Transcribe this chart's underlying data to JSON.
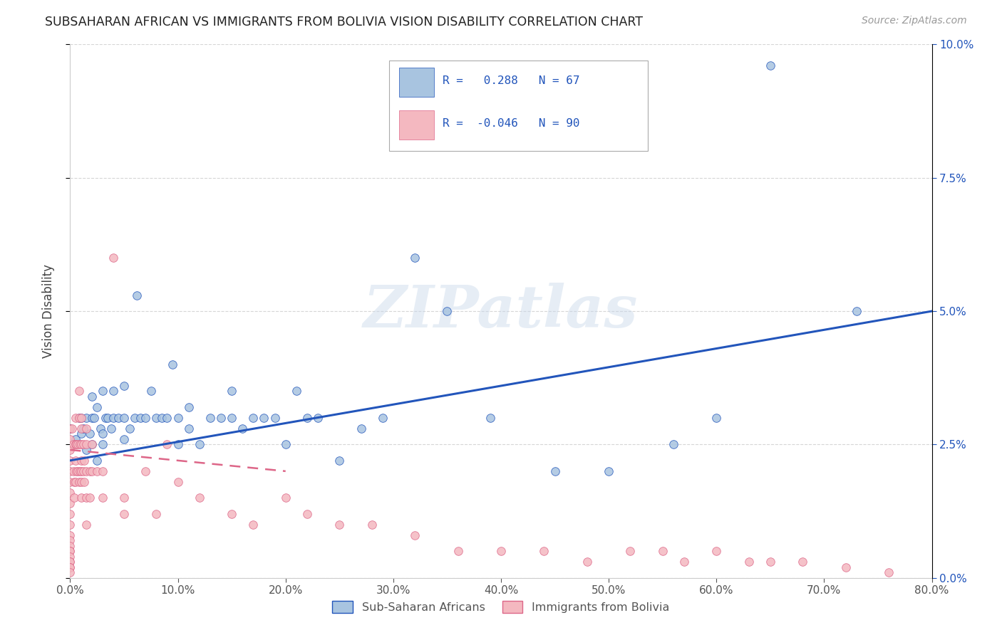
{
  "title": "SUBSAHARAN AFRICAN VS IMMIGRANTS FROM BOLIVIA VISION DISABILITY CORRELATION CHART",
  "source": "Source: ZipAtlas.com",
  "ylabel": "Vision Disability",
  "legend_labels": [
    "Sub-Saharan Africans",
    "Immigrants from Bolivia"
  ],
  "blue_R": "0.288",
  "blue_N": "67",
  "pink_R": "-0.046",
  "pink_N": "90",
  "blue_color": "#a8c4e0",
  "pink_color": "#f4b8c0",
  "blue_line_color": "#2255bb",
  "pink_line_color": "#dd6688",
  "watermark_text": "ZIPatlas",
  "background_color": "#ffffff",
  "xlim": [
    0.0,
    0.8
  ],
  "ylim": [
    0.0,
    0.1
  ],
  "blue_scatter_x": [
    0.0,
    0.005,
    0.008,
    0.01,
    0.01,
    0.012,
    0.015,
    0.015,
    0.018,
    0.02,
    0.02,
    0.02,
    0.022,
    0.025,
    0.025,
    0.028,
    0.03,
    0.03,
    0.03,
    0.033,
    0.035,
    0.038,
    0.04,
    0.04,
    0.045,
    0.05,
    0.05,
    0.05,
    0.055,
    0.06,
    0.062,
    0.065,
    0.07,
    0.075,
    0.08,
    0.085,
    0.09,
    0.095,
    0.1,
    0.1,
    0.11,
    0.11,
    0.12,
    0.13,
    0.14,
    0.15,
    0.15,
    0.16,
    0.17,
    0.18,
    0.19,
    0.2,
    0.21,
    0.22,
    0.23,
    0.25,
    0.27,
    0.29,
    0.32,
    0.35,
    0.39,
    0.45,
    0.5,
    0.56,
    0.6,
    0.65,
    0.73
  ],
  "blue_scatter_y": [
    0.028,
    0.026,
    0.03,
    0.027,
    0.03,
    0.028,
    0.024,
    0.03,
    0.027,
    0.025,
    0.03,
    0.034,
    0.03,
    0.022,
    0.032,
    0.028,
    0.025,
    0.027,
    0.035,
    0.03,
    0.03,
    0.028,
    0.03,
    0.035,
    0.03,
    0.026,
    0.03,
    0.036,
    0.028,
    0.03,
    0.053,
    0.03,
    0.03,
    0.035,
    0.03,
    0.03,
    0.03,
    0.04,
    0.025,
    0.03,
    0.028,
    0.032,
    0.025,
    0.03,
    0.03,
    0.03,
    0.035,
    0.028,
    0.03,
    0.03,
    0.03,
    0.025,
    0.035,
    0.03,
    0.03,
    0.022,
    0.028,
    0.03,
    0.06,
    0.05,
    0.03,
    0.02,
    0.02,
    0.025,
    0.03,
    0.096,
    0.05
  ],
  "pink_scatter_x": [
    0.0,
    0.0,
    0.0,
    0.0,
    0.0,
    0.0,
    0.0,
    0.0,
    0.0,
    0.0,
    0.0,
    0.0,
    0.0,
    0.0,
    0.0,
    0.0,
    0.0,
    0.0,
    0.0,
    0.0,
    0.0,
    0.002,
    0.003,
    0.003,
    0.004,
    0.004,
    0.005,
    0.005,
    0.005,
    0.005,
    0.006,
    0.006,
    0.007,
    0.007,
    0.008,
    0.008,
    0.008,
    0.009,
    0.009,
    0.01,
    0.01,
    0.01,
    0.01,
    0.01,
    0.01,
    0.01,
    0.012,
    0.012,
    0.013,
    0.013,
    0.015,
    0.015,
    0.015,
    0.015,
    0.015,
    0.018,
    0.018,
    0.02,
    0.02,
    0.025,
    0.03,
    0.03,
    0.04,
    0.05,
    0.05,
    0.07,
    0.08,
    0.09,
    0.1,
    0.12,
    0.15,
    0.17,
    0.2,
    0.22,
    0.25,
    0.28,
    0.32,
    0.36,
    0.4,
    0.44,
    0.48,
    0.52,
    0.55,
    0.57,
    0.6,
    0.63,
    0.65,
    0.68,
    0.72,
    0.76
  ],
  "pink_scatter_y": [
    0.028,
    0.026,
    0.024,
    0.022,
    0.02,
    0.018,
    0.016,
    0.014,
    0.012,
    0.01,
    0.008,
    0.007,
    0.006,
    0.005,
    0.005,
    0.004,
    0.003,
    0.003,
    0.002,
    0.002,
    0.001,
    0.028,
    0.025,
    0.02,
    0.018,
    0.015,
    0.03,
    0.025,
    0.022,
    0.018,
    0.025,
    0.02,
    0.025,
    0.02,
    0.035,
    0.03,
    0.018,
    0.025,
    0.02,
    0.03,
    0.028,
    0.025,
    0.022,
    0.02,
    0.018,
    0.015,
    0.025,
    0.02,
    0.022,
    0.018,
    0.028,
    0.025,
    0.02,
    0.015,
    0.01,
    0.02,
    0.015,
    0.025,
    0.02,
    0.02,
    0.02,
    0.015,
    0.06,
    0.015,
    0.012,
    0.02,
    0.012,
    0.025,
    0.018,
    0.015,
    0.012,
    0.01,
    0.015,
    0.012,
    0.01,
    0.01,
    0.008,
    0.005,
    0.005,
    0.005,
    0.003,
    0.005,
    0.005,
    0.003,
    0.005,
    0.003,
    0.003,
    0.003,
    0.002,
    0.001
  ],
  "blue_line_x0": 0.0,
  "blue_line_y0": 0.022,
  "blue_line_x1": 0.8,
  "blue_line_y1": 0.05,
  "pink_line_x0": 0.0,
  "pink_line_y0": 0.024,
  "pink_line_x1": 0.2,
  "pink_line_y1": 0.02
}
